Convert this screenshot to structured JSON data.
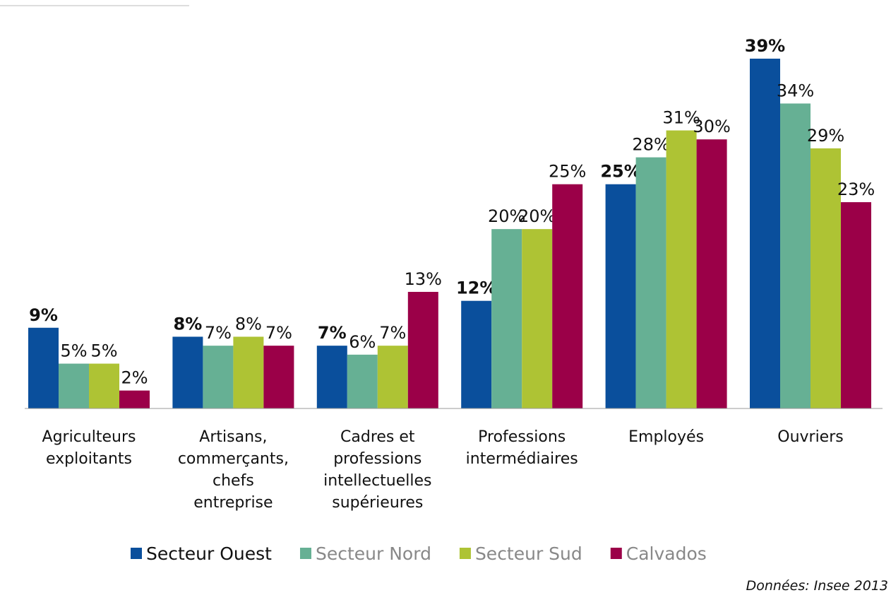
{
  "chart_data": {
    "type": "bar",
    "categories": [
      [
        "Agriculteurs",
        "exploitants"
      ],
      [
        "Artisans,",
        "commerçants,",
        "chefs",
        "entreprise"
      ],
      [
        "Cadres et",
        "professions",
        "intellectuelles",
        "supérieures"
      ],
      [
        "Professions",
        "intermédiaires"
      ],
      [
        "Employés"
      ],
      [
        "Ouvriers"
      ]
    ],
    "series": [
      {
        "name": "Secteur Ouest",
        "color": "#0a4f9c",
        "values": [
          9,
          8,
          7,
          12,
          25,
          39
        ],
        "value_labels": [
          "9%",
          "8%",
          "7%",
          "12%",
          "25%",
          "39%"
        ]
      },
      {
        "name": "Secteur Nord",
        "color": "#66b094",
        "values": [
          5,
          7,
          6,
          20,
          28,
          34
        ],
        "value_labels": [
          "5%",
          "7%",
          "6%",
          "20%",
          "28%",
          "34%"
        ]
      },
      {
        "name": "Secteur Sud",
        "color": "#aec334",
        "values": [
          5,
          8,
          7,
          20,
          31,
          29
        ],
        "value_labels": [
          "5%",
          "8%",
          "7%",
          "20%",
          "31%",
          "29%"
        ]
      },
      {
        "name": "Calvados",
        "color": "#9b0048",
        "values": [
          2,
          7,
          13,
          25,
          30,
          23
        ],
        "value_labels": [
          "2%",
          "7%",
          "13%",
          "25%",
          "30%",
          "23%"
        ]
      }
    ],
    "source": "Données:  Insee 2013"
  }
}
